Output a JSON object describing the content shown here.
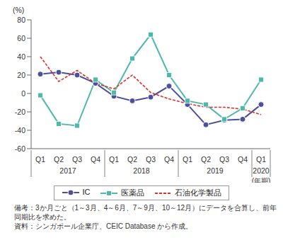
{
  "chart_data": {
    "type": "line",
    "y_label": "(%)",
    "x_label": "(年期)",
    "categories": [
      "Q1",
      "Q2",
      "Q3",
      "Q4",
      "Q1",
      "Q2",
      "Q3",
      "Q4",
      "Q1",
      "Q2",
      "Q3",
      "Q4",
      "Q1"
    ],
    "x_groups": [
      {
        "label": "2017",
        "count": 4
      },
      {
        "label": "2018",
        "count": 4
      },
      {
        "label": "2019",
        "count": 4
      },
      {
        "label": "2020",
        "count": 1
      }
    ],
    "ylim": [
      -60,
      80
    ],
    "yticks": [
      -60,
      -40,
      -20,
      0,
      20,
      40,
      60,
      80
    ],
    "grid": false,
    "legend": "bottom",
    "series": [
      {
        "name": "IC",
        "color": "#4b4f9c",
        "marker": "circle",
        "line_style": "solid",
        "values": [
          21,
          23,
          20,
          11,
          -3,
          -8,
          -4,
          8,
          -12,
          -34,
          -29,
          -28,
          -12
        ]
      },
      {
        "name": "医薬品",
        "color": "#4fb8ab",
        "marker": "square",
        "line_style": "solid",
        "values": [
          -2,
          -33,
          -35,
          15,
          1,
          38,
          64,
          20,
          -8,
          -12,
          -28,
          -16,
          15
        ]
      },
      {
        "name": "石油化学製品",
        "color": "#e0302a",
        "marker": "none",
        "line_style": "dashed",
        "values": [
          40,
          13,
          25,
          11,
          5,
          20,
          1,
          -6,
          -11,
          -15,
          -15,
          -17,
          -23
        ]
      }
    ],
    "notes": [
      "備考：3か月ごと（1～3月、4～6月、7～9月、10～12月）にデータを合算し、前年同期比を求めた。",
      "資料：シンガポール企業庁、CEIC Database から作成。"
    ]
  }
}
